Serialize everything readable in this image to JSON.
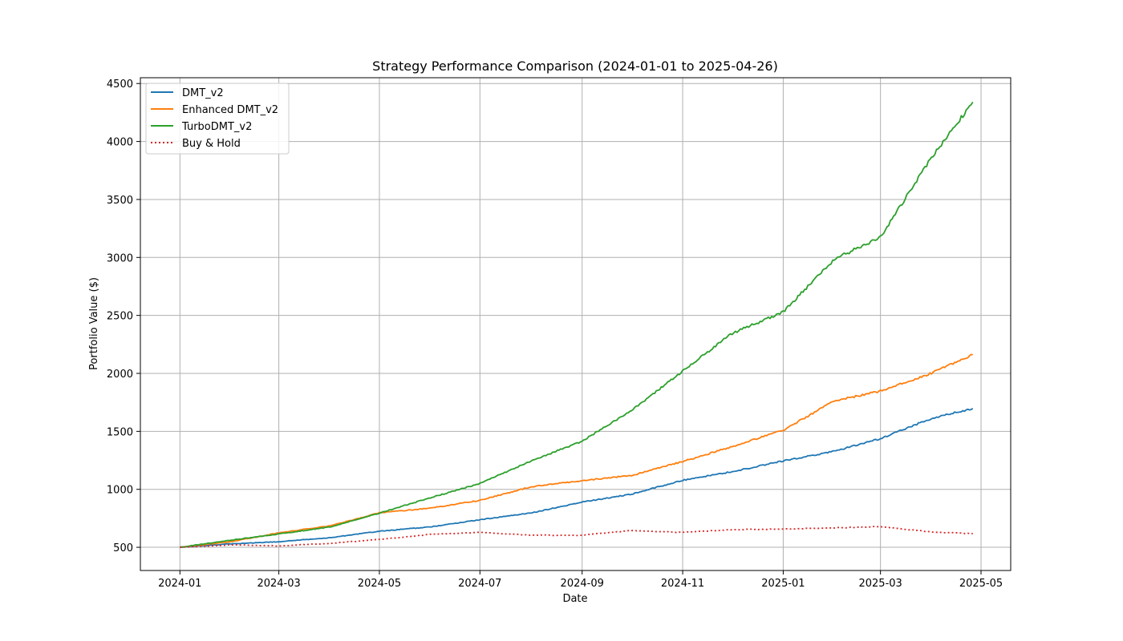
{
  "chart_data": {
    "type": "line",
    "title": "Strategy Performance Comparison (2024-01-01 to 2025-04-26)",
    "xlabel": "Date",
    "ylabel": "Portfolio Value ($)",
    "xlim": [
      "2023-12-08",
      "2025-05-19"
    ],
    "ylim": [
      300,
      4550
    ],
    "x_ticks": [
      "2024-01",
      "2024-03",
      "2024-05",
      "2024-07",
      "2024-09",
      "2024-11",
      "2025-01",
      "2025-03",
      "2025-05"
    ],
    "y_ticks": [
      500,
      1000,
      1500,
      2000,
      2500,
      3000,
      3500,
      4000,
      4500
    ],
    "grid": true,
    "legend_position": "top-left",
    "series": [
      {
        "name": "DMT_v2",
        "color": "#1f77b4",
        "style": "solid",
        "points": [
          [
            "2024-01-01",
            500
          ],
          [
            "2024-02-01",
            530
          ],
          [
            "2024-03-01",
            548
          ],
          [
            "2024-04-01",
            583
          ],
          [
            "2024-05-01",
            638
          ],
          [
            "2024-06-01",
            676
          ],
          [
            "2024-07-01",
            738
          ],
          [
            "2024-08-01",
            796
          ],
          [
            "2024-09-01",
            890
          ],
          [
            "2024-10-01",
            958
          ],
          [
            "2024-11-01",
            1078
          ],
          [
            "2024-12-01",
            1152
          ],
          [
            "2025-01-01",
            1245
          ],
          [
            "2025-02-01",
            1328
          ],
          [
            "2025-03-01",
            1438
          ],
          [
            "2025-04-01",
            1612
          ],
          [
            "2025-04-26",
            1698
          ]
        ]
      },
      {
        "name": "Enhanced DMT_v2",
        "color": "#ff7f0e",
        "style": "solid",
        "points": [
          [
            "2024-01-01",
            500
          ],
          [
            "2024-02-01",
            548
          ],
          [
            "2024-03-01",
            625
          ],
          [
            "2024-04-01",
            685
          ],
          [
            "2024-05-01",
            798
          ],
          [
            "2024-06-01",
            838
          ],
          [
            "2024-07-01",
            905
          ],
          [
            "2024-08-01",
            1022
          ],
          [
            "2024-09-01",
            1075
          ],
          [
            "2024-10-01",
            1120
          ],
          [
            "2024-11-01",
            1240
          ],
          [
            "2024-12-01",
            1368
          ],
          [
            "2025-01-01",
            1510
          ],
          [
            "2025-02-01",
            1762
          ],
          [
            "2025-03-01",
            1848
          ],
          [
            "2025-04-01",
            2002
          ],
          [
            "2025-04-26",
            2160
          ]
        ]
      },
      {
        "name": "TurboDMT_v2",
        "color": "#2ca02c",
        "style": "solid",
        "points": [
          [
            "2024-01-01",
            500
          ],
          [
            "2024-02-01",
            562
          ],
          [
            "2024-03-01",
            615
          ],
          [
            "2024-04-01",
            675
          ],
          [
            "2024-05-01",
            795
          ],
          [
            "2024-06-01",
            928
          ],
          [
            "2024-07-01",
            1050
          ],
          [
            "2024-08-01",
            1245
          ],
          [
            "2024-09-01",
            1415
          ],
          [
            "2024-10-01",
            1680
          ],
          [
            "2024-11-01",
            2020
          ],
          [
            "2024-12-01",
            2345
          ],
          [
            "2025-01-01",
            2530
          ],
          [
            "2025-02-01",
            2985
          ],
          [
            "2025-03-01",
            3175
          ],
          [
            "2025-04-01",
            3865
          ],
          [
            "2025-04-26",
            4340
          ]
        ]
      },
      {
        "name": "Buy & Hold",
        "color": "#d62728",
        "style": "dotted",
        "points": [
          [
            "2024-01-01",
            500
          ],
          [
            "2024-02-01",
            522
          ],
          [
            "2024-03-01",
            512
          ],
          [
            "2024-04-01",
            534
          ],
          [
            "2024-05-01",
            568
          ],
          [
            "2024-06-01",
            612
          ],
          [
            "2024-07-01",
            628
          ],
          [
            "2024-08-01",
            604
          ],
          [
            "2024-09-01",
            604
          ],
          [
            "2024-10-01",
            645
          ],
          [
            "2024-11-01",
            628
          ],
          [
            "2024-12-01",
            652
          ],
          [
            "2025-01-01",
            658
          ],
          [
            "2025-02-01",
            668
          ],
          [
            "2025-03-01",
            678
          ],
          [
            "2025-04-01",
            632
          ],
          [
            "2025-04-26",
            618
          ]
        ]
      }
    ]
  }
}
